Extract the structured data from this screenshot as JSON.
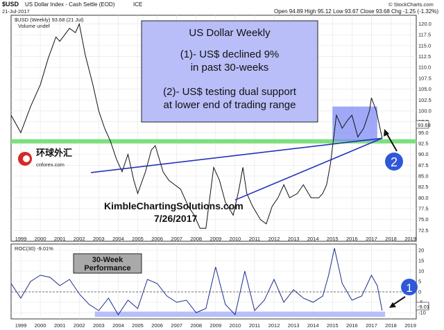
{
  "header": {
    "symbol": "$USD",
    "name": "US Dollar Index - Cash Settle (EOD)",
    "exchange": "ICE",
    "date": "21-Jul-2017",
    "quote": "Open 94.89  High 95.12  Low 93.67  Close 93.68  Chg -1.25 (-1.32%)",
    "source": "© StockCharts.com"
  },
  "legend": {
    "main": "$USD (Weekly) 93.68 (21 Jul)",
    "volume": "Volume undef"
  },
  "watermark": {
    "logo_cn": "环球外汇",
    "logo_en": "cnforex.com",
    "line1": "KimbleChartingSolutions.com",
    "line2": "7/26/2017"
  },
  "colors": {
    "price_line": "#111111",
    "support_band": "#7CE07C",
    "trendline": "#2233BB",
    "range_box": "#7F8CF5",
    "annotation_box": "#B9BEF8",
    "roc_line": "#1A2C8C",
    "roc_band": "#B8BEF8",
    "label_box": "#A9A9A9",
    "marker": "#2F58D9"
  },
  "chart_data": [
    {
      "type": "line",
      "title": "US Dollar Weekly",
      "series": [
        {
          "name": "$USD (Weekly)",
          "x": [
            1998.5,
            1999.0,
            1999.5,
            2000.0,
            2000.4,
            2000.8,
            2001.0,
            2001.5,
            2001.8,
            2002.0,
            2002.3,
            2002.7,
            2003.0,
            2003.3,
            2003.6,
            2003.9,
            2004.2,
            2004.5,
            2004.8,
            2005.0,
            2005.4,
            2005.7,
            2005.9,
            2006.3,
            2006.6,
            2006.9,
            2007.2,
            2007.6,
            2007.9,
            2008.2,
            2008.5,
            2008.7,
            2008.9,
            2009.2,
            2009.5,
            2009.9,
            2010.2,
            2010.4,
            2010.6,
            2010.9,
            2011.3,
            2011.6,
            2011.9,
            2012.2,
            2012.5,
            2012.8,
            2013.2,
            2013.5,
            2013.9,
            2014.3,
            2014.5,
            2014.7,
            2014.9,
            2015.2,
            2015.5,
            2015.8,
            2016.0,
            2016.3,
            2016.6,
            2016.9,
            2017.0,
            2017.25,
            2017.55
          ],
          "values": [
            99,
            95,
            101,
            106,
            112,
            117,
            116,
            119,
            118,
            120,
            113,
            106,
            100,
            96,
            93,
            89,
            86,
            90,
            84,
            81,
            86,
            91,
            92,
            86,
            84,
            83,
            82,
            78,
            76,
            73,
            73,
            80,
            87,
            84,
            79,
            76,
            82,
            87,
            81,
            78,
            75,
            74,
            78,
            80,
            83,
            80,
            81,
            83,
            80,
            80,
            81,
            83,
            88,
            99,
            96,
            98,
            99,
            94,
            96,
            100,
            103,
            100,
            93.68
          ]
        }
      ],
      "support_level": 93.0,
      "range_box": {
        "x": [
          2015.0,
          2017.3
        ],
        "y": [
          93,
          101
        ]
      },
      "trendlines": [
        {
          "x": [
            2002.6,
            2017.55
          ],
          "y": [
            85.8,
            93.7
          ]
        },
        {
          "x": [
            2010.0,
            2017.55
          ],
          "y": [
            79.5,
            93.7
          ]
        }
      ],
      "ylim": [
        70,
        122
      ],
      "xlim": [
        1998.5,
        2019.3
      ],
      "yticks": [
        72.5,
        75,
        77.5,
        80,
        82.5,
        85,
        87.5,
        90,
        92.5,
        95,
        97.5,
        100,
        102.5,
        105,
        107.5,
        110,
        112.5,
        115,
        117.5,
        120
      ],
      "last_value": "93.68",
      "grid": true,
      "annotations": [
        {
          "text": "(1)- US$ declined 9%"
        },
        {
          "text": "in past 30-weeks"
        },
        {
          "text": "(2)- US$ testing dual support"
        },
        {
          "text": "at lower end of trading range"
        }
      ],
      "marker": "2"
    },
    {
      "type": "line",
      "title": "30-Week Performance",
      "legend": "ROC(30) -9.01%",
      "series": [
        {
          "name": "ROC(30)",
          "x": [
            1998.5,
            1999.0,
            1999.5,
            2000.0,
            2000.5,
            2001.0,
            2001.5,
            2002.0,
            2002.5,
            2003.0,
            2003.5,
            2004.0,
            2004.5,
            2005.0,
            2005.5,
            2006.0,
            2006.5,
            2007.0,
            2007.5,
            2008.0,
            2008.5,
            2009.0,
            2009.5,
            2010.0,
            2010.5,
            2011.0,
            2011.5,
            2012.0,
            2012.5,
            2013.0,
            2013.5,
            2014.0,
            2014.5,
            2014.8,
            2015.1,
            2015.5,
            2016.0,
            2016.5,
            2017.0,
            2017.3,
            2017.55
          ],
          "values": [
            4,
            -3,
            5,
            8,
            7,
            3,
            6,
            -1,
            -6,
            -9,
            -3,
            -11,
            -4,
            -8,
            6,
            4,
            -2,
            -5,
            -4,
            -10,
            -8,
            12,
            -6,
            -11,
            10,
            -9,
            -4,
            6,
            -5,
            1,
            -3,
            -5,
            -2,
            8,
            21,
            4,
            -4,
            -2,
            8,
            3,
            -9.01
          ]
        }
      ],
      "ylim": [
        -13,
        23
      ],
      "xlim": [
        1998.5,
        2019.3
      ],
      "yticks": [
        -10,
        -5,
        0,
        5,
        10,
        15,
        20
      ],
      "last_value": "-9.01",
      "low_band": [
        -12,
        -9.5
      ],
      "marker": "1"
    }
  ],
  "x_labels": [
    "1999",
    "2000",
    "2001",
    "2002",
    "2003",
    "2004",
    "2005",
    "2006",
    "2007",
    "2008",
    "2009",
    "2010",
    "2011",
    "2012",
    "2013",
    "2014",
    "2015",
    "2016",
    "2017",
    "2018",
    "2019"
  ]
}
